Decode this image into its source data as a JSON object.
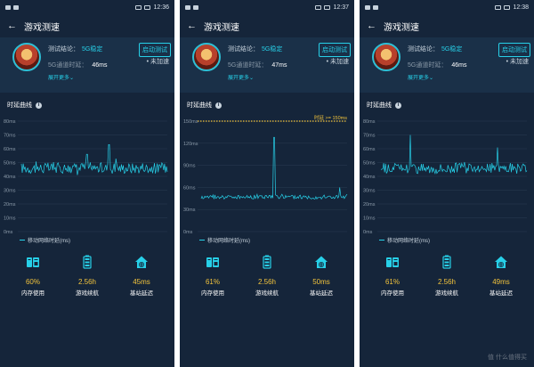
{
  "screens": [
    {
      "time": "12:36",
      "title": "游戏测速",
      "conclusion_label": "测试结论：",
      "conclusion_value": "5G稳定",
      "start_button": "启动测试",
      "accel_status": "• 未加速",
      "delay_label": "5G通道时延：",
      "delay_value": "46ms",
      "expand": "展开更多",
      "section_title": "时延曲线",
      "y_ticks": [
        "80ms",
        "70ms",
        "60ms",
        "50ms",
        "40ms",
        "30ms",
        "20ms",
        "10ms",
        "0ms"
      ],
      "legend": "移动网络时延(ms)",
      "memory": "60%",
      "memory_label": "内存使用",
      "battery": "2.56h",
      "battery_label": "游戏续航",
      "station": "45ms",
      "station_label": "基站延迟"
    },
    {
      "time": "12:37",
      "title": "游戏测速",
      "conclusion_label": "测试结论：",
      "conclusion_value": "5G稳定",
      "start_button": "启动测试",
      "accel_status": "• 未加速",
      "delay_label": "5G通道时延：",
      "delay_value": "47ms",
      "expand": "展开更多",
      "section_title": "时延曲线",
      "threshold_label": "时延 >= 150ms",
      "y_ticks": [
        "150ms",
        "120ms",
        "90ms",
        "60ms",
        "30ms",
        "0ms"
      ],
      "legend": "移动网络时延(ms)",
      "memory": "61%",
      "memory_label": "内存使用",
      "battery": "2.56h",
      "battery_label": "游戏续航",
      "station": "50ms",
      "station_label": "基站延迟"
    },
    {
      "time": "12:38",
      "title": "游戏测速",
      "conclusion_label": "测试结论：",
      "conclusion_value": "5G稳定",
      "start_button": "启动测试",
      "accel_status": "• 未加速",
      "delay_label": "5G通道时延：",
      "delay_value": "46ms",
      "expand": "展开更多",
      "section_title": "时延曲线",
      "y_ticks": [
        "80ms",
        "70ms",
        "60ms",
        "50ms",
        "40ms",
        "30ms",
        "20ms",
        "10ms",
        "0ms"
      ],
      "legend": "移动网络时延(ms)",
      "memory": "61%",
      "memory_label": "内存使用",
      "battery": "2.56h",
      "battery_label": "游戏续航",
      "station": "49ms",
      "station_label": "基站延迟",
      "watermark": "值 什么值得买"
    }
  ],
  "colors": {
    "accent": "#27d0e8",
    "value": "#f2c33c",
    "background": "#15253a",
    "threshold": "#f2c33c"
  },
  "icons": {
    "back": "arrow-left-icon",
    "memory": "sd-card-icon",
    "battery": "battery-icon",
    "station": "globe-house-icon",
    "info": "info-icon"
  },
  "chart_data": [
    {
      "type": "line",
      "series": [
        {
          "name": "移动网络时延(ms)",
          "baseline": 46,
          "noise": 4,
          "spikes": [
            [
              0.6,
              63
            ],
            [
              0.45,
              56
            ]
          ]
        }
      ],
      "ylim": [
        0,
        80
      ],
      "grid": true
    },
    {
      "type": "line",
      "series": [
        {
          "name": "移动网络时延(ms)",
          "baseline": 47,
          "noise": 3,
          "spikes": [
            [
              0.5,
              128
            ],
            [
              0.95,
              60
            ]
          ]
        }
      ],
      "threshold": 150,
      "ylim": [
        0,
        150
      ],
      "grid": true
    },
    {
      "type": "line",
      "series": [
        {
          "name": "移动网络时延(ms)",
          "baseline": 46,
          "noise": 4,
          "spikes": [
            [
              0.2,
              70
            ],
            [
              0.8,
              61
            ]
          ]
        }
      ],
      "ylim": [
        0,
        80
      ],
      "grid": true
    }
  ]
}
